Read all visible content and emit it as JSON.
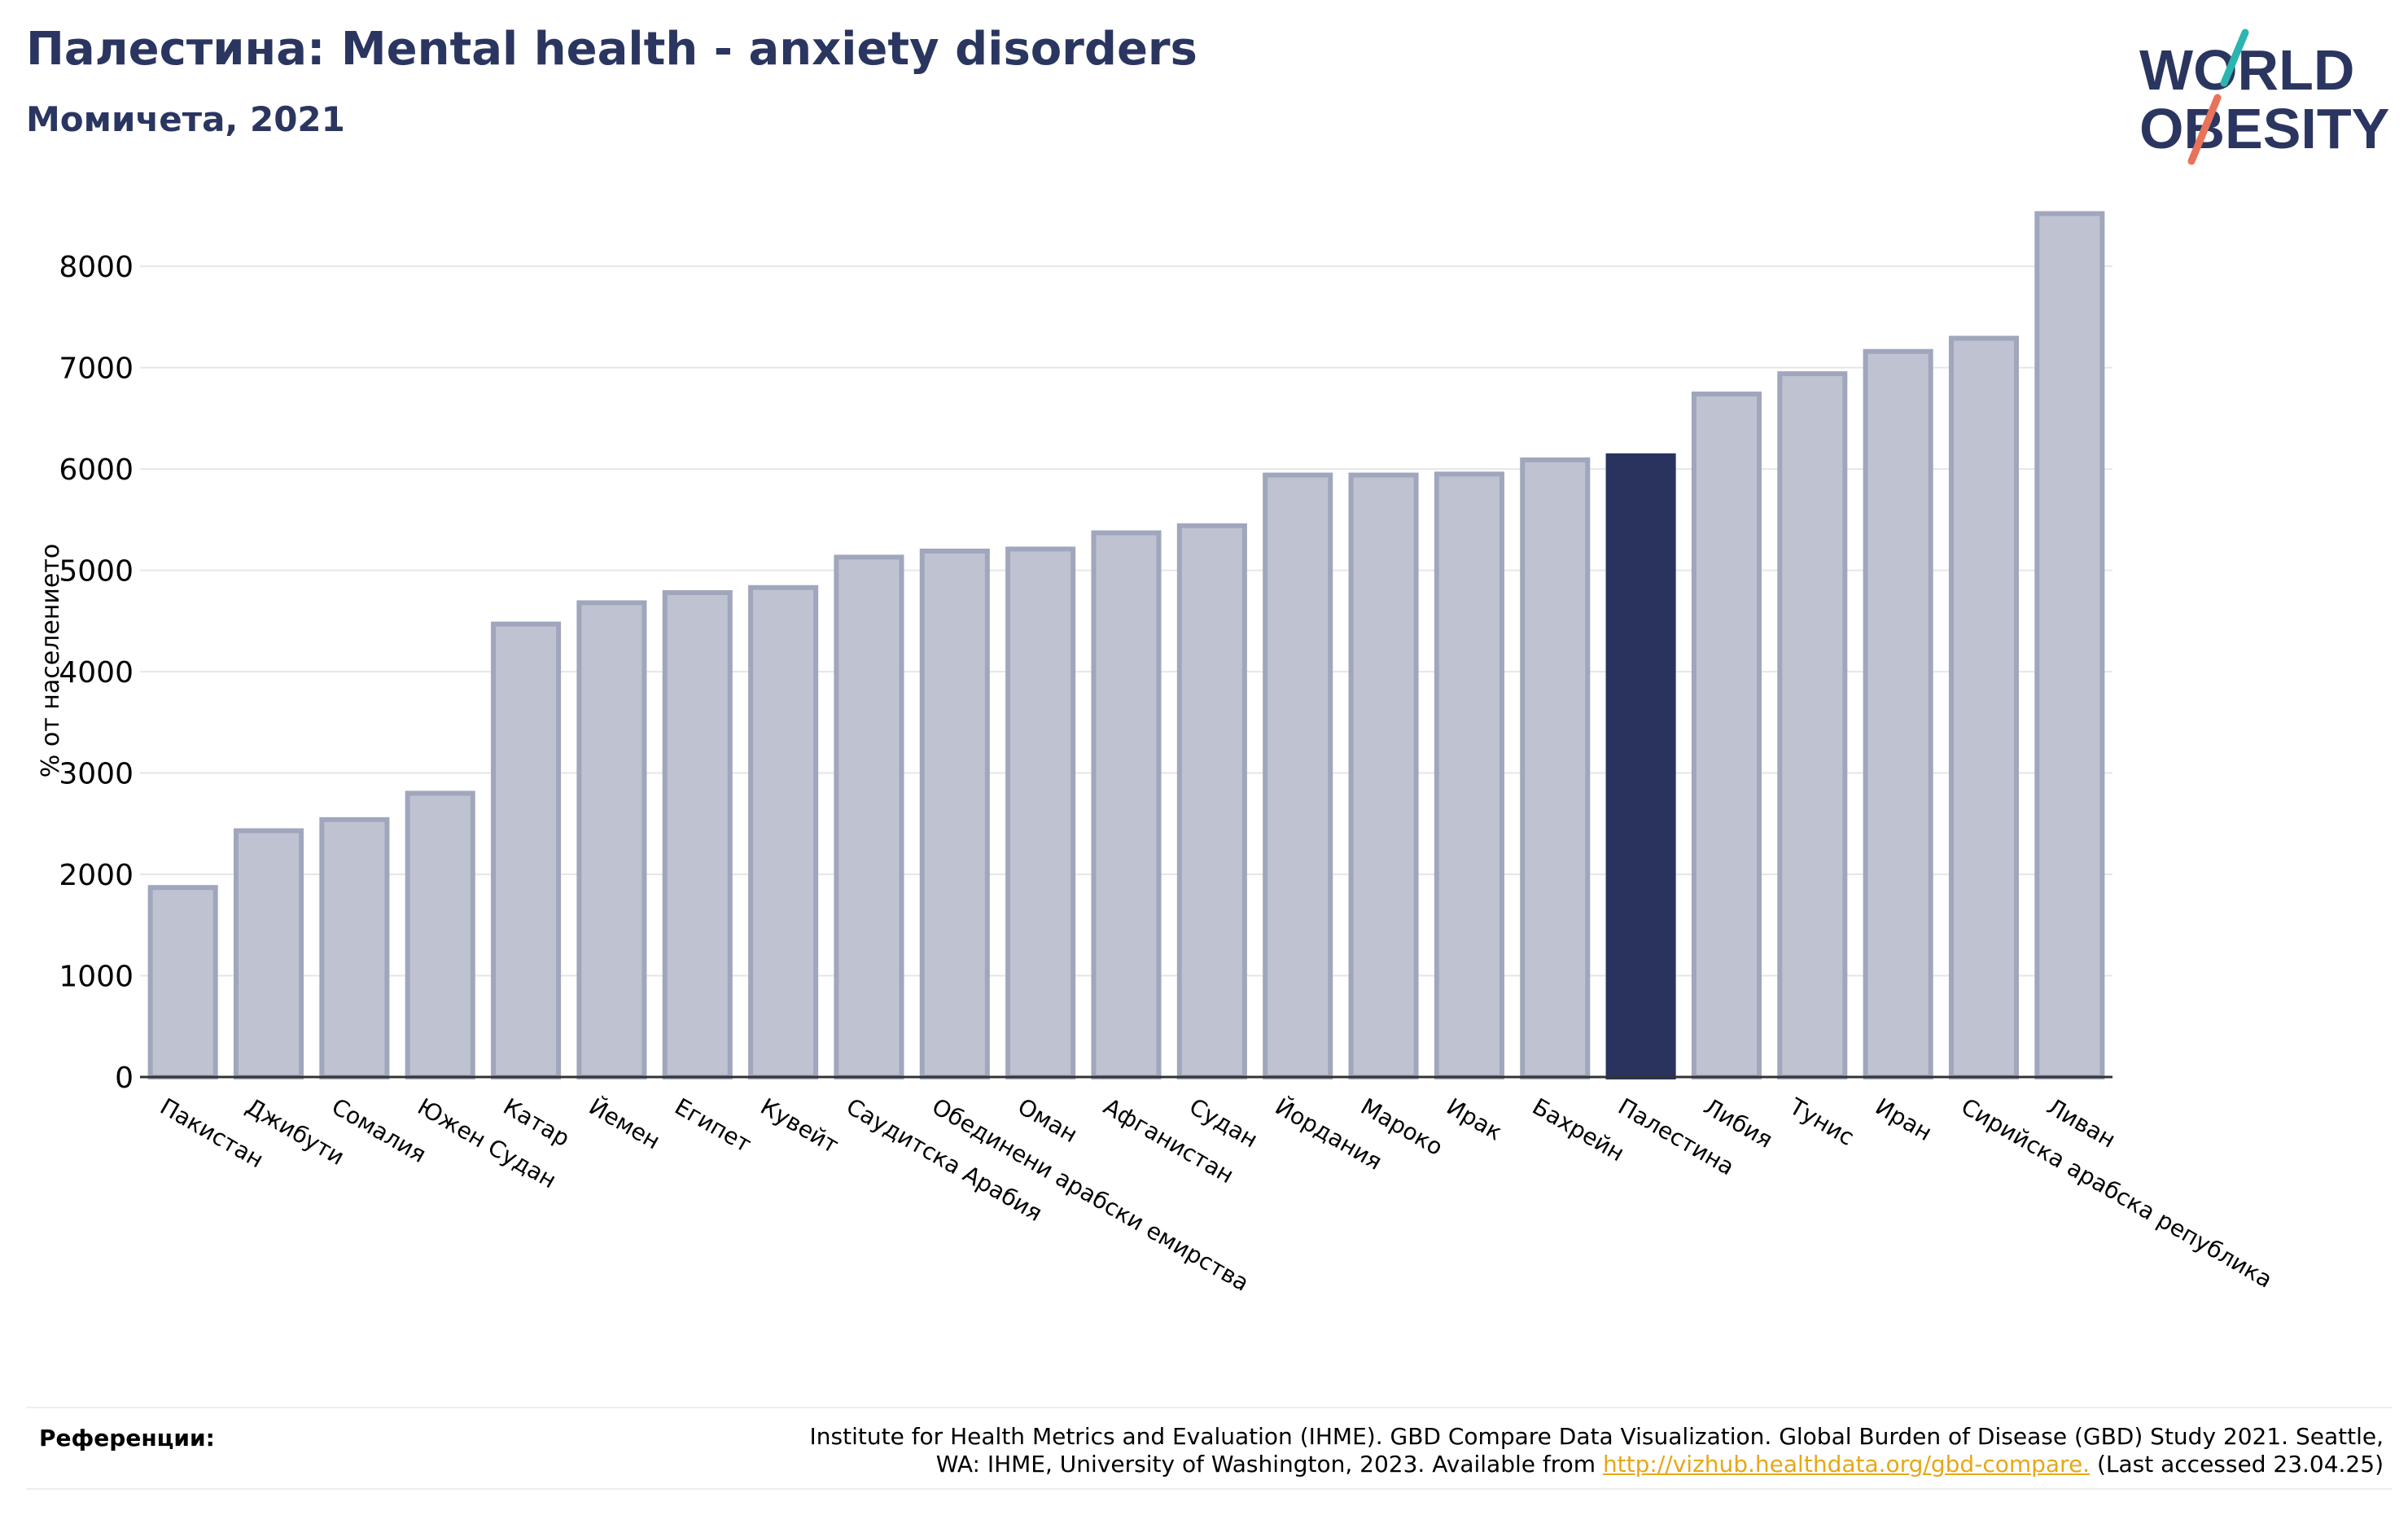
{
  "header": {
    "title": "Палестина: Mental health - anxiety disorders",
    "subtitle": "Момичета, 2021"
  },
  "logo": {
    "line1": "WORLD",
    "line2": "OBESITY",
    "text_color": "#2a3660",
    "slash_color_top": "#2bb5b0",
    "slash_color_bottom": "#e8735a"
  },
  "colors": {
    "bar_default": "#bfc3d1",
    "bar_border": "#a0a6bc",
    "bar_highlight": "#29335e",
    "grid": "#e6e6e6",
    "axis": "#333333",
    "link": "#e6a817"
  },
  "chart_data": {
    "type": "bar",
    "title": "Палестина: Mental health - anxiety disorders",
    "subtitle": "Момичета, 2021",
    "ylabel": "% от населението",
    "xlabel": "",
    "ylim": [
      0,
      8700
    ],
    "yticks": [
      0,
      1000,
      2000,
      3000,
      4000,
      5000,
      6000,
      7000,
      8000
    ],
    "grid": true,
    "highlight": "Палестина",
    "categories": [
      "Пакистан",
      "Джибути",
      "Сомалия",
      "Южен Судан",
      "Катар",
      "Йемен",
      "Египет",
      "Кувейт",
      "Саудитска Арабия",
      "Обединени арабски емирства",
      "Оман",
      "Афганистан",
      "Судан",
      "Йордания",
      "Мароко",
      "Ирак",
      "Бахрейн",
      "Палестина",
      "Либия",
      "Тунис",
      "Иран",
      "Сирийска арабска република",
      "Ливан"
    ],
    "values": [
      1870,
      2430,
      2540,
      2800,
      4470,
      4680,
      4780,
      4830,
      5130,
      5190,
      5210,
      5370,
      5440,
      5940,
      5940,
      5950,
      6090,
      6130,
      6740,
      6940,
      7160,
      7290,
      8520
    ]
  },
  "references": {
    "label": "Референции:",
    "text_line1": "Institute for Health Metrics and Evaluation (IHME). GBD Compare Data Visualization. Global Burden of Disease (GBD) Study 2021. Seattle,",
    "text_line2_before": "WA: IHME, University of Washington, 2023. Available from ",
    "link": "http://vizhub.healthdata.org/gbd-compare.",
    "text_line2_after": " (Last accessed 23.04.25)"
  }
}
